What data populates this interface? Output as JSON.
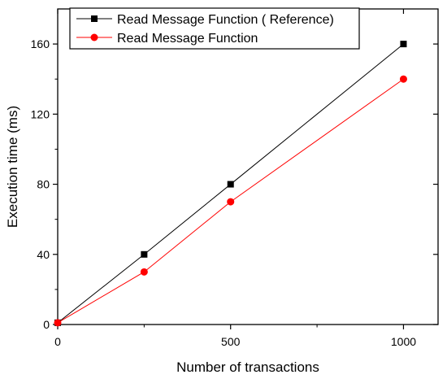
{
  "chart_data": {
    "type": "line",
    "xlabel": "Number of transactions",
    "ylabel": "Execution time (ms)",
    "xlim": [
      0,
      1100
    ],
    "ylim": [
      0,
      180
    ],
    "xticks": [
      0,
      500,
      1000
    ],
    "yticks": [
      0,
      40,
      80,
      120,
      160
    ],
    "grid": false,
    "legend_position": "top-center",
    "series": [
      {
        "name": "Read Message Function ( Reference)",
        "color": "#000000",
        "marker": "square",
        "x": [
          0,
          250,
          500,
          1000
        ],
        "y": [
          1,
          40,
          80,
          160
        ]
      },
      {
        "name": "Read Message Function",
        "color": "#ff0000",
        "marker": "circle",
        "x": [
          0,
          250,
          500,
          1000
        ],
        "y": [
          1,
          30,
          70,
          140
        ]
      }
    ]
  }
}
